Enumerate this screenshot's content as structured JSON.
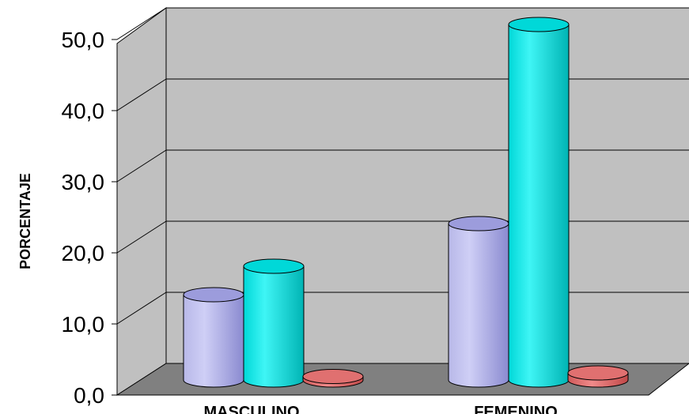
{
  "chart_data": {
    "type": "bar",
    "title": "",
    "xlabel": "",
    "ylabel": "PORCENTAJE",
    "categories": [
      "MASCULINO",
      "FEMENINO"
    ],
    "series": [
      {
        "color": "#9999ff",
        "values": [
          12.0,
          22.0
        ]
      },
      {
        "color": "#00e0e0",
        "values": [
          16.0,
          50.0
        ]
      },
      {
        "color": "#e06060",
        "values": [
          0.5,
          1.0
        ]
      }
    ],
    "yticks": [
      "0,0",
      "10,0",
      "20,0",
      "30,0",
      "40,0",
      "50,0"
    ],
    "ylim": [
      0,
      50
    ],
    "grid": true,
    "three_d": true
  }
}
